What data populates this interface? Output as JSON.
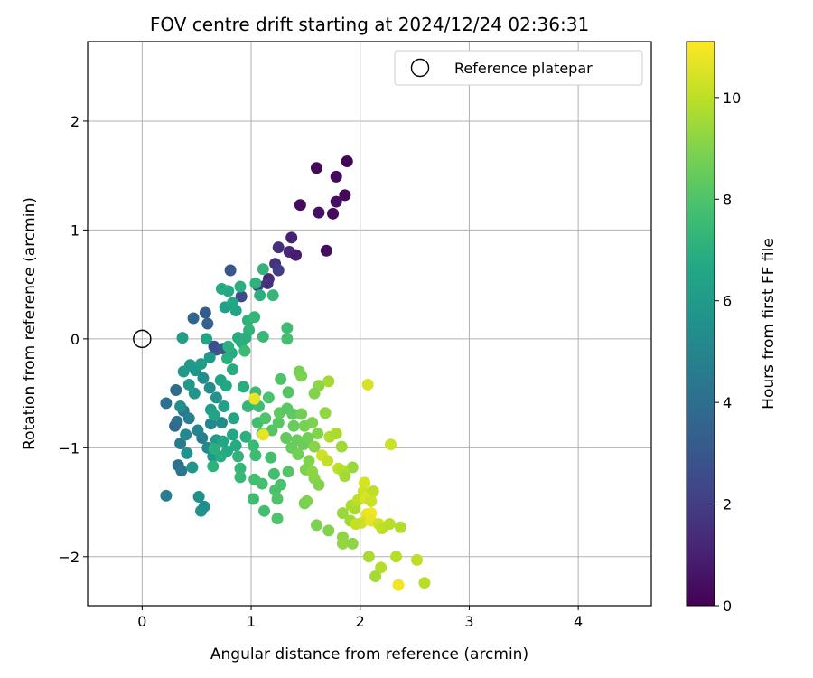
{
  "chart_data": {
    "type": "scatter",
    "title": "FOV centre drift starting at 2024/12/24 02:36:31",
    "xlabel": "Angular distance from reference (arcmin)",
    "ylabel": "Rotation from reference (arcmin)",
    "xlim": [
      -0.5,
      4.67
    ],
    "ylim": [
      -2.45,
      2.73
    ],
    "xticks": [
      0,
      1,
      2,
      3,
      4
    ],
    "xtick_labels": [
      "0",
      "1",
      "2",
      "3",
      "4"
    ],
    "yticks": [
      -2,
      -1,
      0,
      1,
      2
    ],
    "ytick_labels": [
      "−2",
      "−1",
      "0",
      "1",
      "2"
    ],
    "grid": true,
    "legend": {
      "placement": "top-right",
      "entries": [
        "Reference platepar"
      ]
    },
    "reference_point": {
      "x": 0,
      "y": 0
    },
    "colorbar": {
      "label": "Hours from first FF file",
      "colormap": "viridis",
      "range": [
        0,
        11.1
      ],
      "ticks": [
        0,
        2,
        4,
        6,
        8,
        10
      ],
      "tick_labels": [
        "0",
        "2",
        "4",
        "6",
        "8",
        "10"
      ]
    },
    "points": [
      {
        "x": 1.88,
        "y": 1.63,
        "t": 0.1
      },
      {
        "x": 1.6,
        "y": 1.57,
        "t": 0.2
      },
      {
        "x": 1.78,
        "y": 1.49,
        "t": 0.3
      },
      {
        "x": 1.86,
        "y": 1.32,
        "t": 0.2
      },
      {
        "x": 1.45,
        "y": 1.23,
        "t": 0.3
      },
      {
        "x": 1.78,
        "y": 1.26,
        "t": 0.4
      },
      {
        "x": 1.62,
        "y": 1.16,
        "t": 0.5
      },
      {
        "x": 1.75,
        "y": 1.15,
        "t": 0.3
      },
      {
        "x": 1.69,
        "y": 0.81,
        "t": 0.4
      },
      {
        "x": 1.37,
        "y": 0.93,
        "t": 1.0
      },
      {
        "x": 1.25,
        "y": 0.84,
        "t": 1.5
      },
      {
        "x": 1.35,
        "y": 0.8,
        "t": 1.2
      },
      {
        "x": 1.41,
        "y": 0.77,
        "t": 0.9
      },
      {
        "x": 1.22,
        "y": 0.69,
        "t": 1.6
      },
      {
        "x": 1.25,
        "y": 0.63,
        "t": 2.0
      },
      {
        "x": 1.16,
        "y": 0.55,
        "t": 1.3
      },
      {
        "x": 1.15,
        "y": 0.51,
        "t": 1.5
      },
      {
        "x": 1.06,
        "y": 0.49,
        "t": 1.8
      },
      {
        "x": 0.81,
        "y": 0.63,
        "t": 3.0
      },
      {
        "x": 0.91,
        "y": 0.39,
        "t": 2.5
      },
      {
        "x": 0.58,
        "y": 0.24,
        "t": 3.2
      },
      {
        "x": 0.47,
        "y": 0.19,
        "t": 3.6
      },
      {
        "x": 0.6,
        "y": 0.14,
        "t": 3.4
      },
      {
        "x": 0.66,
        "y": -0.07,
        "t": 2.6
      },
      {
        "x": 0.68,
        "y": -0.1,
        "t": 2.8
      },
      {
        "x": 0.74,
        "y": -0.09,
        "t": 3.0
      },
      {
        "x": 0.22,
        "y": -0.59,
        "t": 4.0
      },
      {
        "x": 0.31,
        "y": -0.47,
        "t": 3.8
      },
      {
        "x": 0.32,
        "y": -0.76,
        "t": 4.2
      },
      {
        "x": 0.3,
        "y": -0.8,
        "t": 3.9
      },
      {
        "x": 0.35,
        "y": -0.96,
        "t": 4.5
      },
      {
        "x": 0.33,
        "y": -1.16,
        "t": 4.1
      },
      {
        "x": 0.36,
        "y": -1.21,
        "t": 4.3
      },
      {
        "x": 0.22,
        "y": -1.44,
        "t": 4.6
      },
      {
        "x": 0.38,
        "y": -0.66,
        "t": 4.4
      },
      {
        "x": 0.43,
        "y": -0.73,
        "t": 4.8
      },
      {
        "x": 0.51,
        "y": -0.84,
        "t": 5.0
      },
      {
        "x": 0.55,
        "y": -0.91,
        "t": 4.7
      },
      {
        "x": 0.6,
        "y": -1.0,
        "t": 5.2
      },
      {
        "x": 0.63,
        "y": -0.78,
        "t": 5.1
      },
      {
        "x": 0.73,
        "y": -0.77,
        "t": 5.3
      },
      {
        "x": 0.54,
        "y": -1.58,
        "t": 5.6
      },
      {
        "x": 0.57,
        "y": -1.54,
        "t": 5.4
      },
      {
        "x": 0.52,
        "y": -1.45,
        "t": 5.5
      },
      {
        "x": 0.41,
        "y": -1.05,
        "t": 5.6
      },
      {
        "x": 0.46,
        "y": -1.18,
        "t": 5.7
      },
      {
        "x": 0.65,
        "y": -1.08,
        "t": 5.8
      },
      {
        "x": 0.68,
        "y": -0.93,
        "t": 5.9
      },
      {
        "x": 0.56,
        "y": -0.36,
        "t": 5.5
      },
      {
        "x": 0.62,
        "y": -0.45,
        "t": 5.4
      },
      {
        "x": 0.68,
        "y": -0.54,
        "t": 5.6
      },
      {
        "x": 0.38,
        "y": -0.3,
        "t": 6.0
      },
      {
        "x": 0.44,
        "y": -0.24,
        "t": 5.9
      },
      {
        "x": 0.49,
        "y": -0.29,
        "t": 5.8
      },
      {
        "x": 0.54,
        "y": -0.23,
        "t": 6.1
      },
      {
        "x": 0.62,
        "y": -0.17,
        "t": 6.0
      },
      {
        "x": 0.43,
        "y": -0.42,
        "t": 5.9
      },
      {
        "x": 0.48,
        "y": -0.5,
        "t": 5.7
      },
      {
        "x": 0.35,
        "y": -0.62,
        "t": 5.4
      },
      {
        "x": 0.4,
        "y": -0.88,
        "t": 5.2
      },
      {
        "x": 0.37,
        "y": 0.01,
        "t": 6.2
      },
      {
        "x": 0.59,
        "y": 0.0,
        "t": 6.4
      },
      {
        "x": 0.76,
        "y": 0.29,
        "t": 6.3
      },
      {
        "x": 0.86,
        "y": 0.26,
        "t": 6.5
      },
      {
        "x": 0.83,
        "y": 0.33,
        "t": 6.6
      },
      {
        "x": 0.79,
        "y": 0.44,
        "t": 6.7
      },
      {
        "x": 0.73,
        "y": 0.46,
        "t": 6.8
      },
      {
        "x": 0.9,
        "y": 0.48,
        "t": 7.0
      },
      {
        "x": 1.04,
        "y": 0.51,
        "t": 7.1
      },
      {
        "x": 1.11,
        "y": 0.64,
        "t": 7.2
      },
      {
        "x": 1.08,
        "y": 0.4,
        "t": 7.0
      },
      {
        "x": 1.2,
        "y": 0.4,
        "t": 7.3
      },
      {
        "x": 0.97,
        "y": 0.17,
        "t": 7.1
      },
      {
        "x": 0.88,
        "y": 0.01,
        "t": 6.8
      },
      {
        "x": 0.91,
        "y": -0.03,
        "t": 6.9
      },
      {
        "x": 0.82,
        "y": -0.13,
        "t": 6.7
      },
      {
        "x": 0.79,
        "y": -0.07,
        "t": 7.0
      },
      {
        "x": 0.98,
        "y": 0.08,
        "t": 7.2
      },
      {
        "x": 0.95,
        "y": 0.01,
        "t": 7.0
      },
      {
        "x": 1.03,
        "y": 0.2,
        "t": 7.3
      },
      {
        "x": 1.11,
        "y": 0.02,
        "t": 7.4
      },
      {
        "x": 1.33,
        "y": 0.1,
        "t": 7.6
      },
      {
        "x": 1.33,
        "y": 0.0,
        "t": 7.8
      },
      {
        "x": 0.94,
        "y": -0.11,
        "t": 7.5
      },
      {
        "x": 0.78,
        "y": -0.18,
        "t": 7.0
      },
      {
        "x": 0.83,
        "y": -0.28,
        "t": 6.8
      },
      {
        "x": 0.72,
        "y": -0.38,
        "t": 6.4
      },
      {
        "x": 0.77,
        "y": -0.43,
        "t": 6.6
      },
      {
        "x": 0.93,
        "y": -0.44,
        "t": 6.9
      },
      {
        "x": 0.63,
        "y": -0.65,
        "t": 6.2
      },
      {
        "x": 0.75,
        "y": -0.62,
        "t": 6.3
      },
      {
        "x": 0.66,
        "y": -0.7,
        "t": 6.4
      },
      {
        "x": 0.84,
        "y": -0.73,
        "t": 6.5
      },
      {
        "x": 0.83,
        "y": -0.88,
        "t": 6.6
      },
      {
        "x": 0.86,
        "y": -0.98,
        "t": 6.8
      },
      {
        "x": 0.78,
        "y": -1.03,
        "t": 6.7
      },
      {
        "x": 0.72,
        "y": -1.08,
        "t": 6.9
      },
      {
        "x": 0.66,
        "y": -1.01,
        "t": 7.0
      },
      {
        "x": 0.65,
        "y": -1.17,
        "t": 7.1
      },
      {
        "x": 0.88,
        "y": -1.08,
        "t": 7.2
      },
      {
        "x": 0.9,
        "y": -1.19,
        "t": 7.3
      },
      {
        "x": 0.9,
        "y": -1.27,
        "t": 7.4
      },
      {
        "x": 0.74,
        "y": -0.94,
        "t": 6.6
      },
      {
        "x": 0.95,
        "y": -0.9,
        "t": 7.0
      },
      {
        "x": 1.02,
        "y": -0.98,
        "t": 7.5
      },
      {
        "x": 1.04,
        "y": -1.07,
        "t": 7.6
      },
      {
        "x": 1.03,
        "y": -1.29,
        "t": 7.7
      },
      {
        "x": 1.02,
        "y": -1.47,
        "t": 7.6
      },
      {
        "x": 1.1,
        "y": -1.33,
        "t": 7.8
      },
      {
        "x": 1.12,
        "y": -1.58,
        "t": 7.7
      },
      {
        "x": 1.21,
        "y": -1.24,
        "t": 7.8
      },
      {
        "x": 1.22,
        "y": -1.39,
        "t": 7.9
      },
      {
        "x": 1.24,
        "y": -1.47,
        "t": 8.0
      },
      {
        "x": 1.27,
        "y": -1.34,
        "t": 7.9
      },
      {
        "x": 1.24,
        "y": -1.65,
        "t": 8.0
      },
      {
        "x": 1.34,
        "y": -1.22,
        "t": 8.1
      },
      {
        "x": 1.18,
        "y": -1.09,
        "t": 7.8
      },
      {
        "x": 1.06,
        "y": -0.77,
        "t": 7.7
      },
      {
        "x": 1.07,
        "y": -0.62,
        "t": 7.6
      },
      {
        "x": 1.04,
        "y": -0.49,
        "t": 7.5
      },
      {
        "x": 0.97,
        "y": -0.62,
        "t": 7.3
      },
      {
        "x": 1.16,
        "y": -0.54,
        "t": 7.9
      },
      {
        "x": 1.13,
        "y": -0.73,
        "t": 8.0
      },
      {
        "x": 1.1,
        "y": -0.87,
        "t": 7.9
      },
      {
        "x": 1.19,
        "y": -0.84,
        "t": 8.1
      },
      {
        "x": 1.25,
        "y": -0.77,
        "t": 8.2
      },
      {
        "x": 1.26,
        "y": -0.68,
        "t": 8.3
      },
      {
        "x": 1.32,
        "y": -0.91,
        "t": 8.4
      },
      {
        "x": 1.33,
        "y": -0.64,
        "t": 8.2
      },
      {
        "x": 1.27,
        "y": -0.37,
        "t": 8.0
      },
      {
        "x": 1.34,
        "y": -0.49,
        "t": 8.1
      },
      {
        "x": 1.38,
        "y": -0.69,
        "t": 8.3
      },
      {
        "x": 1.39,
        "y": -0.8,
        "t": 8.5
      },
      {
        "x": 1.42,
        "y": -0.93,
        "t": 8.6
      },
      {
        "x": 1.37,
        "y": -1.0,
        "t": 8.5
      },
      {
        "x": 1.43,
        "y": -1.06,
        "t": 8.7
      },
      {
        "x": 1.48,
        "y": -0.97,
        "t": 8.6
      },
      {
        "x": 1.52,
        "y": -0.91,
        "t": 8.7
      },
      {
        "x": 1.49,
        "y": -0.8,
        "t": 8.8
      },
      {
        "x": 1.46,
        "y": -0.69,
        "t": 8.7
      },
      {
        "x": 1.56,
        "y": -0.77,
        "t": 8.9
      },
      {
        "x": 1.61,
        "y": -0.87,
        "t": 9.0
      },
      {
        "x": 1.58,
        "y": -0.99,
        "t": 9.1
      },
      {
        "x": 1.53,
        "y": -1.12,
        "t": 9.0
      },
      {
        "x": 1.5,
        "y": -1.2,
        "t": 8.9
      },
      {
        "x": 1.58,
        "y": -1.28,
        "t": 9.1
      },
      {
        "x": 1.56,
        "y": -1.22,
        "t": 9.2
      },
      {
        "x": 1.62,
        "y": -1.34,
        "t": 9.0
      },
      {
        "x": 1.49,
        "y": -1.51,
        "t": 8.8
      },
      {
        "x": 1.51,
        "y": -1.49,
        "t": 8.9
      },
      {
        "x": 1.6,
        "y": -1.71,
        "t": 8.9
      },
      {
        "x": 1.71,
        "y": -1.76,
        "t": 9.0
      },
      {
        "x": 1.84,
        "y": -1.82,
        "t": 9.2
      },
      {
        "x": 1.84,
        "y": -1.88,
        "t": 9.3
      },
      {
        "x": 1.93,
        "y": -1.88,
        "t": 9.2
      },
      {
        "x": 1.84,
        "y": -1.6,
        "t": 9.4
      },
      {
        "x": 1.91,
        "y": -1.67,
        "t": 9.5
      },
      {
        "x": 1.95,
        "y": -1.56,
        "t": 9.6
      },
      {
        "x": 1.92,
        "y": -1.53,
        "t": 9.7
      },
      {
        "x": 1.93,
        "y": -1.18,
        "t": 9.4
      },
      {
        "x": 1.98,
        "y": -1.48,
        "t": 10.0
      },
      {
        "x": 2.03,
        "y": -1.4,
        "t": 10.2
      },
      {
        "x": 2.05,
        "y": -1.46,
        "t": 10.5
      },
      {
        "x": 2.06,
        "y": -1.61,
        "t": 10.8
      },
      {
        "x": 2.07,
        "y": -1.65,
        "t": 10.6
      },
      {
        "x": 2.01,
        "y": -1.69,
        "t": 10.3
      },
      {
        "x": 1.96,
        "y": -1.7,
        "t": 10.1
      },
      {
        "x": 2.04,
        "y": -1.32,
        "t": 10.4
      },
      {
        "x": 2.12,
        "y": -1.4,
        "t": 10.0
      },
      {
        "x": 2.1,
        "y": -1.49,
        "t": 10.2
      },
      {
        "x": 2.1,
        "y": -1.6,
        "t": 10.9
      },
      {
        "x": 2.1,
        "y": -1.67,
        "t": 10.7
      },
      {
        "x": 2.17,
        "y": -1.7,
        "t": 10.3
      },
      {
        "x": 2.2,
        "y": -1.74,
        "t": 10.0
      },
      {
        "x": 2.27,
        "y": -1.7,
        "t": 9.9
      },
      {
        "x": 2.37,
        "y": -1.73,
        "t": 9.8
      },
      {
        "x": 2.08,
        "y": -2.0,
        "t": 9.7
      },
      {
        "x": 2.14,
        "y": -2.18,
        "t": 9.6
      },
      {
        "x": 2.19,
        "y": -2.1,
        "t": 9.8
      },
      {
        "x": 2.33,
        "y": -2.0,
        "t": 9.9
      },
      {
        "x": 2.35,
        "y": -2.26,
        "t": 10.9
      },
      {
        "x": 2.52,
        "y": -2.03,
        "t": 10.0
      },
      {
        "x": 2.59,
        "y": -2.24,
        "t": 9.9
      },
      {
        "x": 1.03,
        "y": -0.55,
        "t": 10.8
      },
      {
        "x": 1.11,
        "y": -0.88,
        "t": 10.7
      },
      {
        "x": 1.65,
        "y": -1.07,
        "t": 10.3
      },
      {
        "x": 1.7,
        "y": -1.12,
        "t": 10.1
      },
      {
        "x": 1.72,
        "y": -0.9,
        "t": 9.8
      },
      {
        "x": 1.78,
        "y": -0.87,
        "t": 9.7
      },
      {
        "x": 1.8,
        "y": -1.19,
        "t": 10.0
      },
      {
        "x": 1.84,
        "y": -1.21,
        "t": 9.8
      },
      {
        "x": 1.86,
        "y": -1.26,
        "t": 9.6
      },
      {
        "x": 1.83,
        "y": -0.99,
        "t": 9.5
      },
      {
        "x": 1.71,
        "y": -0.39,
        "t": 9.6
      },
      {
        "x": 1.68,
        "y": -0.68,
        "t": 9.3
      },
      {
        "x": 1.62,
        "y": -0.43,
        "t": 9.2
      },
      {
        "x": 1.58,
        "y": -0.5,
        "t": 9.0
      },
      {
        "x": 1.44,
        "y": -0.3,
        "t": 8.8
      },
      {
        "x": 1.46,
        "y": -0.34,
        "t": 8.9
      },
      {
        "x": 2.07,
        "y": -0.42,
        "t": 10.4
      },
      {
        "x": 2.28,
        "y": -0.97,
        "t": 10.2
      }
    ]
  }
}
